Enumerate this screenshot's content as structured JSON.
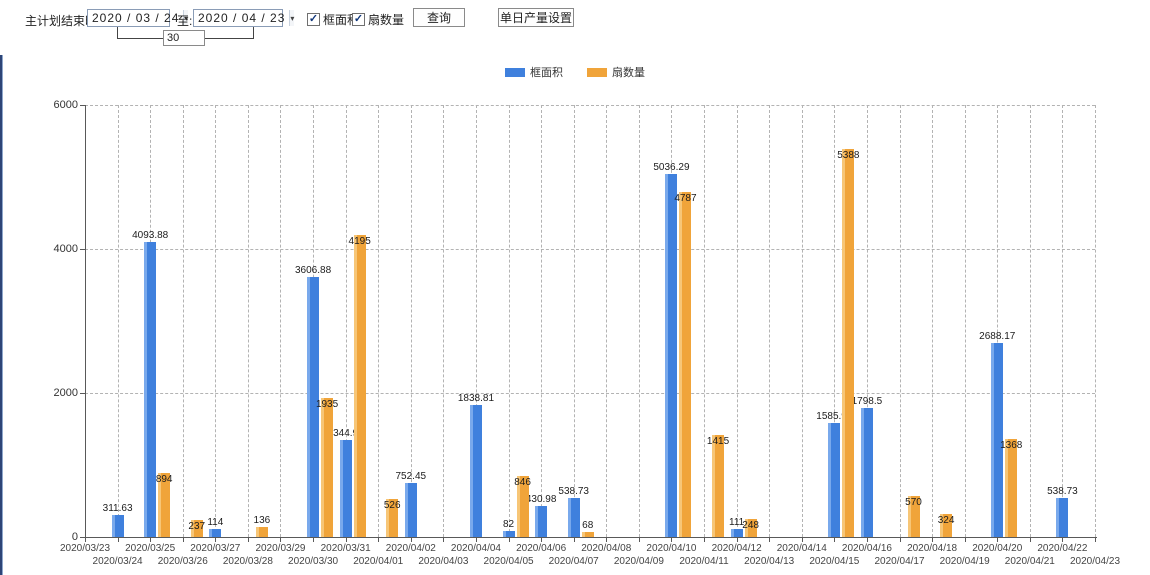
{
  "toolbar": {
    "label": "主计划结束时间:",
    "date_from": "2020 / 03 / 24",
    "to_label": "至:",
    "date_to": "2020 / 04 / 23",
    "interval_value": "30",
    "checkbox_frame_area": "框面积",
    "checkbox_fan_count": "扇数量",
    "checkbox_mark": "✓",
    "query_button": "查询",
    "daily_output_button": "单日产量设置",
    "dropdown_arrow": "▾"
  },
  "chart_data": {
    "type": "bar",
    "title": "",
    "xlabel": "",
    "ylabel": "",
    "ylim": [
      0,
      6000
    ],
    "yticks": [
      0,
      2000,
      4000,
      6000
    ],
    "grid": true,
    "legend_position": "top",
    "categories": [
      "2020/03/23",
      "2020/03/24",
      "2020/03/25",
      "2020/03/26",
      "2020/03/27",
      "2020/03/28",
      "2020/03/29",
      "2020/03/30",
      "2020/03/31",
      "2020/04/01",
      "2020/04/02",
      "2020/04/03",
      "2020/04/04",
      "2020/04/05",
      "2020/04/06",
      "2020/04/07",
      "2020/04/08",
      "2020/04/09",
      "2020/04/10",
      "2020/04/11",
      "2020/04/12",
      "2020/04/13",
      "2020/04/14",
      "2020/04/15",
      "2020/04/16",
      "2020/04/17",
      "2020/04/18",
      "2020/04/19",
      "2020/04/20",
      "2020/04/21",
      "2020/04/22",
      "2020/04/23"
    ],
    "series": [
      {
        "name": "框面积",
        "color": "#3f80dd",
        "edge_color": "#79a9ec",
        "values": [
          null,
          311.63,
          4093.88,
          null,
          114,
          null,
          null,
          3606.88,
          1344.95,
          null,
          752.45,
          null,
          1838.81,
          82,
          430.98,
          538.73,
          null,
          null,
          5036.29,
          null,
          111,
          null,
          null,
          1585.96,
          1798.5,
          null,
          null,
          null,
          2688.17,
          null,
          538.73,
          null
        ]
      },
      {
        "name": "扇数量",
        "color": "#f0a43a",
        "edge_color": "#f7c677",
        "values": [
          null,
          null,
          894,
          237,
          null,
          136,
          null,
          1935,
          4195,
          526,
          null,
          null,
          null,
          846,
          null,
          68,
          null,
          null,
          4787,
          1415,
          248,
          null,
          null,
          5388,
          null,
          570,
          324,
          null,
          1368,
          null,
          null,
          null
        ]
      }
    ]
  }
}
